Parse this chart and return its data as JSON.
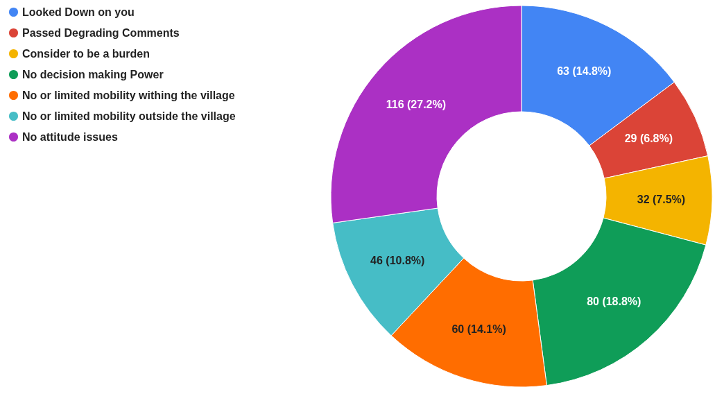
{
  "chart_data": {
    "type": "donut",
    "categories": [
      "Looked Down on you",
      "Passed Degrading Comments",
      "Consider to be a burden",
      "No decision making Power",
      "No or limited mobility withing the village",
      "No or limited mobility outside the village",
      "No attitude issues"
    ],
    "values": [
      63,
      29,
      32,
      80,
      60,
      46,
      116
    ],
    "colors": [
      "#4285f4",
      "#db4437",
      "#f4b400",
      "#0f9d58",
      "#ff6d00",
      "#46bdc6",
      "#ab30c4"
    ],
    "value_labels": [
      "63 (14.8%)",
      "29 (6.8%)",
      "32 (7.5%)",
      "80 (18.8%)",
      "60 (14.1%)",
      "46 (10.8%)",
      "116 (27.2%)"
    ],
    "legend": "top left"
  }
}
